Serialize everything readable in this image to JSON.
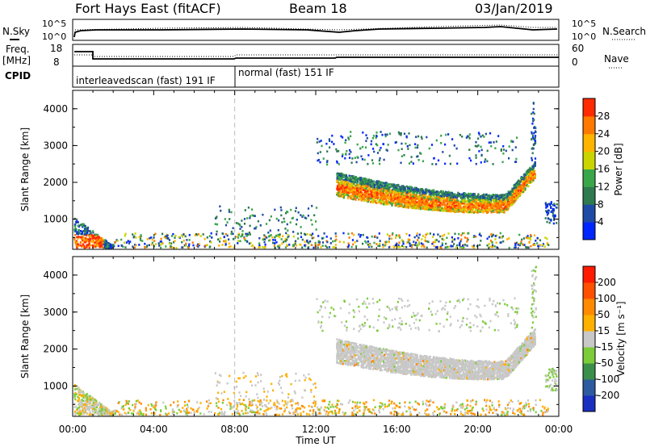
{
  "header": {
    "station": "Fort Hays East (fitACF)",
    "beam": "Beam 18",
    "date": "03/Jan/2019"
  },
  "noise_panel": {
    "left_label": "N.Sky",
    "right_label": "N.Search",
    "ticks": [
      "10^5",
      "10^0"
    ]
  },
  "freq_panel": {
    "left_label": "Freq.",
    "left_unit": "[MHz]",
    "left_ticks": [
      "18",
      "8"
    ],
    "right_label": "Nave",
    "right_ticks": [
      "60",
      "0"
    ]
  },
  "cpid_panel": {
    "label": "CPID",
    "modes": [
      {
        "name": "interleavedscan (fast) 191 IF",
        "start_hour": 0,
        "end_hour": 8
      },
      {
        "name": "normal (fast) 151 IF",
        "start_hour": 8,
        "end_hour": 24
      }
    ]
  },
  "chart_data": [
    {
      "type": "heatmap",
      "quantity": "Power",
      "colorbar_label": "Power [dB]",
      "colorbar_ticks": [
        "28",
        "24",
        "20",
        "16",
        "12",
        "8",
        "4"
      ],
      "colors": [
        "#0026ff",
        "#1f4aa6",
        "#2f7a4f",
        "#3aa64a",
        "#c9d400",
        "#ffb400",
        "#ff7800",
        "#ff2a00"
      ],
      "xlabel": "Time UT",
      "ylabel": "Slant Range [km]",
      "xticks": [
        "00:00",
        "04:00",
        "08:00",
        "12:00",
        "16:00",
        "20:00",
        "00:00"
      ],
      "yticks": [
        "1000",
        "2000",
        "3000",
        "4000"
      ],
      "xlim_hours": [
        0,
        24
      ],
      "ylim_km": [
        180,
        4500
      ],
      "echo_regions": [
        {
          "name": "near-range scatter",
          "t": [
            0,
            2
          ],
          "range_km": [
            180,
            1100
          ],
          "level_db": 26
        },
        {
          "name": "ground scatter",
          "t": [
            2,
            23.5
          ],
          "range_km": [
            180,
            600
          ],
          "level_db": 14
        },
        {
          "name": "main band",
          "t": [
            13,
            22.8
          ],
          "range_km": [
            1200,
            2600
          ],
          "level_db": 22
        },
        {
          "name": "upper scatter",
          "t": [
            12,
            21
          ],
          "range_km": [
            2600,
            3400
          ],
          "level_db": 9
        }
      ]
    },
    {
      "type": "heatmap",
      "quantity": "Velocity",
      "colorbar_label": "Velocity [m s⁻¹]",
      "colorbar_ticks": [
        "200",
        "100",
        "50",
        "15",
        "-15",
        "-50",
        "-100",
        "-200"
      ],
      "colors": [
        "#1a2fc0",
        "#2e5aa0",
        "#3a8f4a",
        "#7ccc3a",
        "#c8c8c8",
        "#ffb000",
        "#ff8a00",
        "#ff5000",
        "#ff1a00"
      ],
      "xlabel": "Time UT",
      "ylabel": "Slant Range [km]",
      "xticks": [
        "00:00",
        "04:00",
        "08:00",
        "12:00",
        "16:00",
        "20:00",
        "00:00"
      ],
      "yticks": [
        "1000",
        "2000",
        "3000",
        "4000"
      ],
      "xlim_hours": [
        0,
        24
      ],
      "ylim_km": [
        180,
        4500
      ]
    }
  ]
}
